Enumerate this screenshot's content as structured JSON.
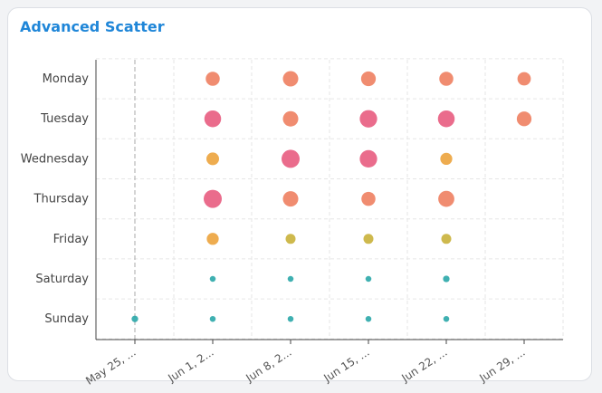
{
  "card": {
    "title": "Advanced Scatter"
  },
  "chart_data": {
    "type": "scatter",
    "title": "Advanced Scatter",
    "x_categories": [
      "May 25, ...",
      "Jun 1, 2...",
      "Jun 8, 2...",
      "Jun 15, ...",
      "Jun 22, ...",
      "Jun 29, ..."
    ],
    "y_categories": [
      "Monday",
      "Tuesday",
      "Wednesday",
      "Thursday",
      "Friday",
      "Saturday",
      "Sunday"
    ],
    "grid": true,
    "points": [
      {
        "x": 1,
        "y": "Monday",
        "value": 7
      },
      {
        "x": 2,
        "y": "Monday",
        "value": 8
      },
      {
        "x": 3,
        "y": "Monday",
        "value": 7.5
      },
      {
        "x": 4,
        "y": "Monday",
        "value": 7
      },
      {
        "x": 5,
        "y": "Monday",
        "value": 6.5
      },
      {
        "x": 1,
        "y": "Tuesday",
        "value": 9
      },
      {
        "x": 2,
        "y": "Tuesday",
        "value": 8
      },
      {
        "x": 3,
        "y": "Tuesday",
        "value": 9.5
      },
      {
        "x": 4,
        "y": "Tuesday",
        "value": 9
      },
      {
        "x": 5,
        "y": "Tuesday",
        "value": 7.5
      },
      {
        "x": 1,
        "y": "Wednesday",
        "value": 6
      },
      {
        "x": 2,
        "y": "Wednesday",
        "value": 10
      },
      {
        "x": 3,
        "y": "Wednesday",
        "value": 9.5
      },
      {
        "x": 4,
        "y": "Wednesday",
        "value": 5.5
      },
      {
        "x": 1,
        "y": "Thursday",
        "value": 10
      },
      {
        "x": 2,
        "y": "Thursday",
        "value": 8
      },
      {
        "x": 3,
        "y": "Thursday",
        "value": 7
      },
      {
        "x": 4,
        "y": "Thursday",
        "value": 8.5
      },
      {
        "x": 1,
        "y": "Friday",
        "value": 5.5
      },
      {
        "x": 2,
        "y": "Friday",
        "value": 4
      },
      {
        "x": 3,
        "y": "Friday",
        "value": 4
      },
      {
        "x": 4,
        "y": "Friday",
        "value": 4
      },
      {
        "x": 1,
        "y": "Saturday",
        "value": 1
      },
      {
        "x": 2,
        "y": "Saturday",
        "value": 1
      },
      {
        "x": 3,
        "y": "Saturday",
        "value": 1
      },
      {
        "x": 4,
        "y": "Saturday",
        "value": 1.5
      },
      {
        "x": 0,
        "y": "Sunday",
        "value": 1.5
      },
      {
        "x": 1,
        "y": "Sunday",
        "value": 1
      },
      {
        "x": 2,
        "y": "Sunday",
        "value": 1
      },
      {
        "x": 3,
        "y": "Sunday",
        "value": 1
      },
      {
        "x": 4,
        "y": "Sunday",
        "value": 1
      }
    ],
    "marker_line_x": "May 25, ...",
    "colors": {
      "low": "#2aa7a8",
      "mid_low": "#c9b13a",
      "mid": "#eca33c",
      "mid_high": "#ee8060",
      "high": "#e85c80",
      "grid": "#e6e6e6",
      "axis": "#444444",
      "marker_line": "#aaaaaa"
    }
  }
}
